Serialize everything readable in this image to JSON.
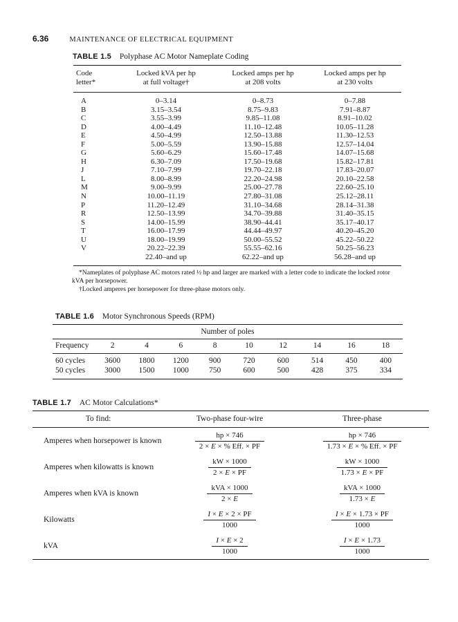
{
  "page": {
    "folio": "6.36",
    "running_head": "MAINTENANCE OF ELECTRICAL EQUIPMENT"
  },
  "colors": {
    "text": "#161616",
    "rule": "#1b1b1b",
    "background": "#ffffff"
  },
  "tables": {
    "t15": {
      "label": "TABLE 1.5",
      "title": "Polyphase AC Motor Nameplate Coding",
      "headers": [
        [
          "Code",
          "letter*"
        ],
        [
          "Locked kVA per hp",
          "at full voltage†"
        ],
        [
          "Locked amps per hp",
          "at 208 volts"
        ],
        [
          "Locked amps per hp",
          "at 230 volts"
        ]
      ],
      "rows": [
        [
          "A",
          "0–3.14",
          "0–8.73",
          "0–7.88"
        ],
        [
          "B",
          "3.15–3.54",
          "8.75–9.83",
          "7.91–8.87"
        ],
        [
          "C",
          "3.55–3.99",
          "9.85–11.08",
          "8.91–10.02"
        ],
        [
          "D",
          "4.00–4.49",
          "11.10–12.48",
          "10.05–11.28"
        ],
        [
          "E",
          "4.50–4.99",
          "12.50–13.88",
          "11.30–12.53"
        ],
        [
          "F",
          "5.00–5.59",
          "13.90–15.88",
          "12.57–14.04"
        ],
        [
          "G",
          "5.60–6.29",
          "15.60–17.48",
          "14.07–15.68"
        ],
        [
          "H",
          "6.30–7.09",
          "17.50–19.68",
          "15.82–17.81"
        ],
        [
          "J",
          "7.10–7.99",
          "19.70–22.18",
          "17.83–20.07"
        ],
        [
          "L",
          "8.00–8.99",
          "22.20–24.98",
          "20.10–22.58"
        ],
        [
          "M",
          "9.00–9.99",
          "25.00–27.78",
          "22.60–25.10"
        ],
        [
          "N",
          "10.00–11.19",
          "27.80–31.08",
          "25.12–28.11"
        ],
        [
          "P",
          "11.20–12.49",
          "31.10–34.68",
          "28.14–31.38"
        ],
        [
          "R",
          "12.50–13.99",
          "34.70–39.88",
          "31.40–35.15"
        ],
        [
          "S",
          "14.00–15.99",
          "38.90–44.41",
          "35.17–40.17"
        ],
        [
          "T",
          "16.00–17.99",
          "44.44–49.97",
          "40.20–45.20"
        ],
        [
          "U",
          "18.00–19.99",
          "50.00–55.52",
          "45.22–50.22"
        ],
        [
          "V",
          "20.22–22.39",
          "55.55–62.16",
          "50.25–56.23"
        ],
        [
          "",
          "22.40–and up",
          "62.22–and up",
          "56.28–and up"
        ]
      ],
      "footnotes": [
        {
          "lines": [
            "*Nameplates of polyphase AC motors rated ½ hp and larger are marked with a letter code to indicate the locked rotor",
            "kVA per horsepower."
          ]
        },
        {
          "lines": [
            "†Locked amperes per horsepower for three-phase motors only."
          ]
        }
      ]
    },
    "t16": {
      "label": "TABLE 1.6",
      "title": "Motor Synchronous Speeds (RPM)",
      "span_header": "Number of poles",
      "columns": [
        "Frequency",
        "2",
        "4",
        "6",
        "8",
        "10",
        "12",
        "14",
        "16",
        "18"
      ],
      "rows": [
        [
          "60 cycles",
          "3600",
          "1800",
          "1200",
          "900",
          "720",
          "600",
          "514",
          "450",
          "400"
        ],
        [
          "50 cycles",
          "3000",
          "1500",
          "1000",
          "750",
          "600",
          "500",
          "428",
          "375",
          "334"
        ]
      ]
    },
    "t17": {
      "label": "TABLE 1.7",
      "title": "AC Motor Calculations*",
      "columns": [
        "To find:",
        "Two-phase four-wire",
        "Three-phase"
      ],
      "rows": [
        {
          "label": "Amperes when horsepower is known",
          "two_phase": {
            "num": "hp × 746",
            "den": "2 × E × % Eff. × PF"
          },
          "three_phase": {
            "num": "hp × 746",
            "den": "1.73 × E × % Eff. × PF"
          }
        },
        {
          "label": "Amperes when kilowatts is known",
          "two_phase": {
            "num": "kW × 1000",
            "den": "2 × E × PF"
          },
          "three_phase": {
            "num": "kW × 1000",
            "den": "1.73 × E × PF"
          }
        },
        {
          "label": "Amperes when kVA is known",
          "two_phase": {
            "num": "kVA × 1000",
            "den": "2 × E"
          },
          "three_phase": {
            "num": "kVA × 1000",
            "den": "1.73 × E"
          }
        },
        {
          "label": "Kilowatts",
          "two_phase": {
            "num": "I × E × 2 × PF",
            "den": "1000"
          },
          "three_phase": {
            "num": "I × E × 1.73 × PF",
            "den": "1000"
          }
        },
        {
          "label": "kVA",
          "two_phase": {
            "num": "I × E × 2",
            "den": "1000"
          },
          "three_phase": {
            "num": "I × E × 1.73",
            "den": "1000"
          }
        }
      ]
    }
  }
}
